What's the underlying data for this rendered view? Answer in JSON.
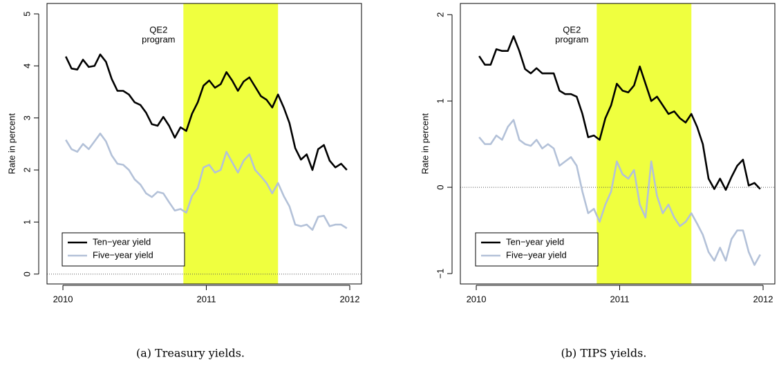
{
  "chart_data": [
    {
      "type": "line",
      "caption": "(a) Treasury yields.",
      "ylabel": "Rate in percent",
      "annotation": [
        "QE2",
        "program"
      ],
      "shade": [
        2010.84,
        2011.5
      ],
      "shade_color": "#efff3f",
      "reference_line": 0,
      "legend": "bottom-left",
      "x": [
        2010.02,
        2010.06,
        2010.1,
        2010.14,
        2010.18,
        2010.22,
        2010.26,
        2010.3,
        2010.34,
        2010.38,
        2010.42,
        2010.46,
        2010.5,
        2010.54,
        2010.58,
        2010.62,
        2010.66,
        2010.7,
        2010.74,
        2010.78,
        2010.82,
        2010.86,
        2010.9,
        2010.94,
        2010.98,
        2011.02,
        2011.06,
        2011.1,
        2011.14,
        2011.18,
        2011.22,
        2011.26,
        2011.3,
        2011.34,
        2011.38,
        2011.42,
        2011.46,
        2011.5,
        2011.54,
        2011.58,
        2011.62,
        2011.66,
        2011.7,
        2011.74,
        2011.78,
        2011.82,
        2011.86,
        2011.9,
        2011.94,
        2011.98
      ],
      "series": [
        {
          "name": "Ten−year yield",
          "color": "#000000",
          "values": [
            4.18,
            3.95,
            3.93,
            4.12,
            3.98,
            4.0,
            4.22,
            4.08,
            3.75,
            3.52,
            3.52,
            3.45,
            3.3,
            3.25,
            3.1,
            2.88,
            2.85,
            3.02,
            2.85,
            2.62,
            2.82,
            2.75,
            3.08,
            3.3,
            3.62,
            3.72,
            3.58,
            3.65,
            3.88,
            3.72,
            3.52,
            3.7,
            3.78,
            3.6,
            3.42,
            3.35,
            3.2,
            3.45,
            3.2,
            2.9,
            2.42,
            2.2,
            2.3,
            2.0,
            2.4,
            2.48,
            2.18,
            2.05,
            2.12,
            2.0
          ]
        },
        {
          "name": "Five−year yield",
          "color": "#b3c1d8",
          "values": [
            2.58,
            2.4,
            2.35,
            2.5,
            2.4,
            2.55,
            2.7,
            2.55,
            2.28,
            2.12,
            2.1,
            2.0,
            1.82,
            1.72,
            1.55,
            1.48,
            1.58,
            1.55,
            1.38,
            1.22,
            1.25,
            1.18,
            1.5,
            1.65,
            2.05,
            2.1,
            1.95,
            2.0,
            2.35,
            2.15,
            1.95,
            2.18,
            2.3,
            2.0,
            1.88,
            1.75,
            1.55,
            1.75,
            1.5,
            1.3,
            0.95,
            0.92,
            0.95,
            0.85,
            1.1,
            1.12,
            0.92,
            0.95,
            0.95,
            0.88
          ]
        }
      ],
      "xlim": [
        2009.889,
        2012.082
      ],
      "xticks": [
        2010,
        2011,
        2012
      ],
      "ylim": [
        -0.19,
        5.2
      ],
      "yticks": [
        0,
        1,
        2,
        3,
        4,
        5
      ]
    },
    {
      "type": "line",
      "caption": "(b) TIPS yields.",
      "ylabel": "Rate in percent",
      "annotation": [
        "QE2",
        "program"
      ],
      "shade": [
        2010.84,
        2011.5
      ],
      "shade_color": "#efff3f",
      "reference_line": 0,
      "legend": "bottom-left",
      "x": [
        2010.02,
        2010.06,
        2010.1,
        2010.14,
        2010.18,
        2010.22,
        2010.26,
        2010.3,
        2010.34,
        2010.38,
        2010.42,
        2010.46,
        2010.5,
        2010.54,
        2010.58,
        2010.62,
        2010.66,
        2010.7,
        2010.74,
        2010.78,
        2010.82,
        2010.86,
        2010.9,
        2010.94,
        2010.98,
        2011.02,
        2011.06,
        2011.1,
        2011.14,
        2011.18,
        2011.22,
        2011.26,
        2011.3,
        2011.34,
        2011.38,
        2011.42,
        2011.46,
        2011.5,
        2011.54,
        2011.58,
        2011.62,
        2011.66,
        2011.7,
        2011.74,
        2011.78,
        2011.82,
        2011.86,
        2011.9,
        2011.94,
        2011.98
      ],
      "series": [
        {
          "name": "Ten−year yield",
          "color": "#000000",
          "values": [
            1.52,
            1.42,
            1.42,
            1.6,
            1.58,
            1.58,
            1.75,
            1.58,
            1.37,
            1.32,
            1.38,
            1.32,
            1.32,
            1.32,
            1.12,
            1.08,
            1.08,
            1.05,
            0.85,
            0.58,
            0.6,
            0.55,
            0.8,
            0.95,
            1.2,
            1.12,
            1.1,
            1.18,
            1.4,
            1.2,
            1.0,
            1.05,
            0.95,
            0.85,
            0.88,
            0.8,
            0.75,
            0.85,
            0.7,
            0.5,
            0.1,
            -0.02,
            0.1,
            -0.03,
            0.12,
            0.25,
            0.32,
            0.02,
            0.05,
            -0.02
          ]
        },
        {
          "name": "Five−year yield",
          "color": "#b3c1d8",
          "values": [
            0.58,
            0.5,
            0.5,
            0.6,
            0.55,
            0.7,
            0.78,
            0.55,
            0.5,
            0.48,
            0.55,
            0.45,
            0.5,
            0.45,
            0.25,
            0.3,
            0.35,
            0.25,
            -0.05,
            -0.3,
            -0.25,
            -0.4,
            -0.2,
            -0.05,
            0.3,
            0.15,
            0.1,
            0.2,
            -0.2,
            -0.35,
            0.3,
            -0.1,
            -0.3,
            -0.2,
            -0.35,
            -0.45,
            -0.4,
            -0.3,
            -0.42,
            -0.55,
            -0.75,
            -0.85,
            -0.7,
            -0.85,
            -0.6,
            -0.5,
            -0.5,
            -0.75,
            -0.9,
            -0.78
          ]
        }
      ],
      "xlim": [
        2009.889,
        2012.082
      ],
      "xticks": [
        2010,
        2011,
        2012
      ],
      "ylim": [
        -1.12,
        2.13
      ],
      "yticks": [
        {
          "value": -1,
          "label": "−1"
        },
        0,
        1,
        2
      ]
    }
  ]
}
